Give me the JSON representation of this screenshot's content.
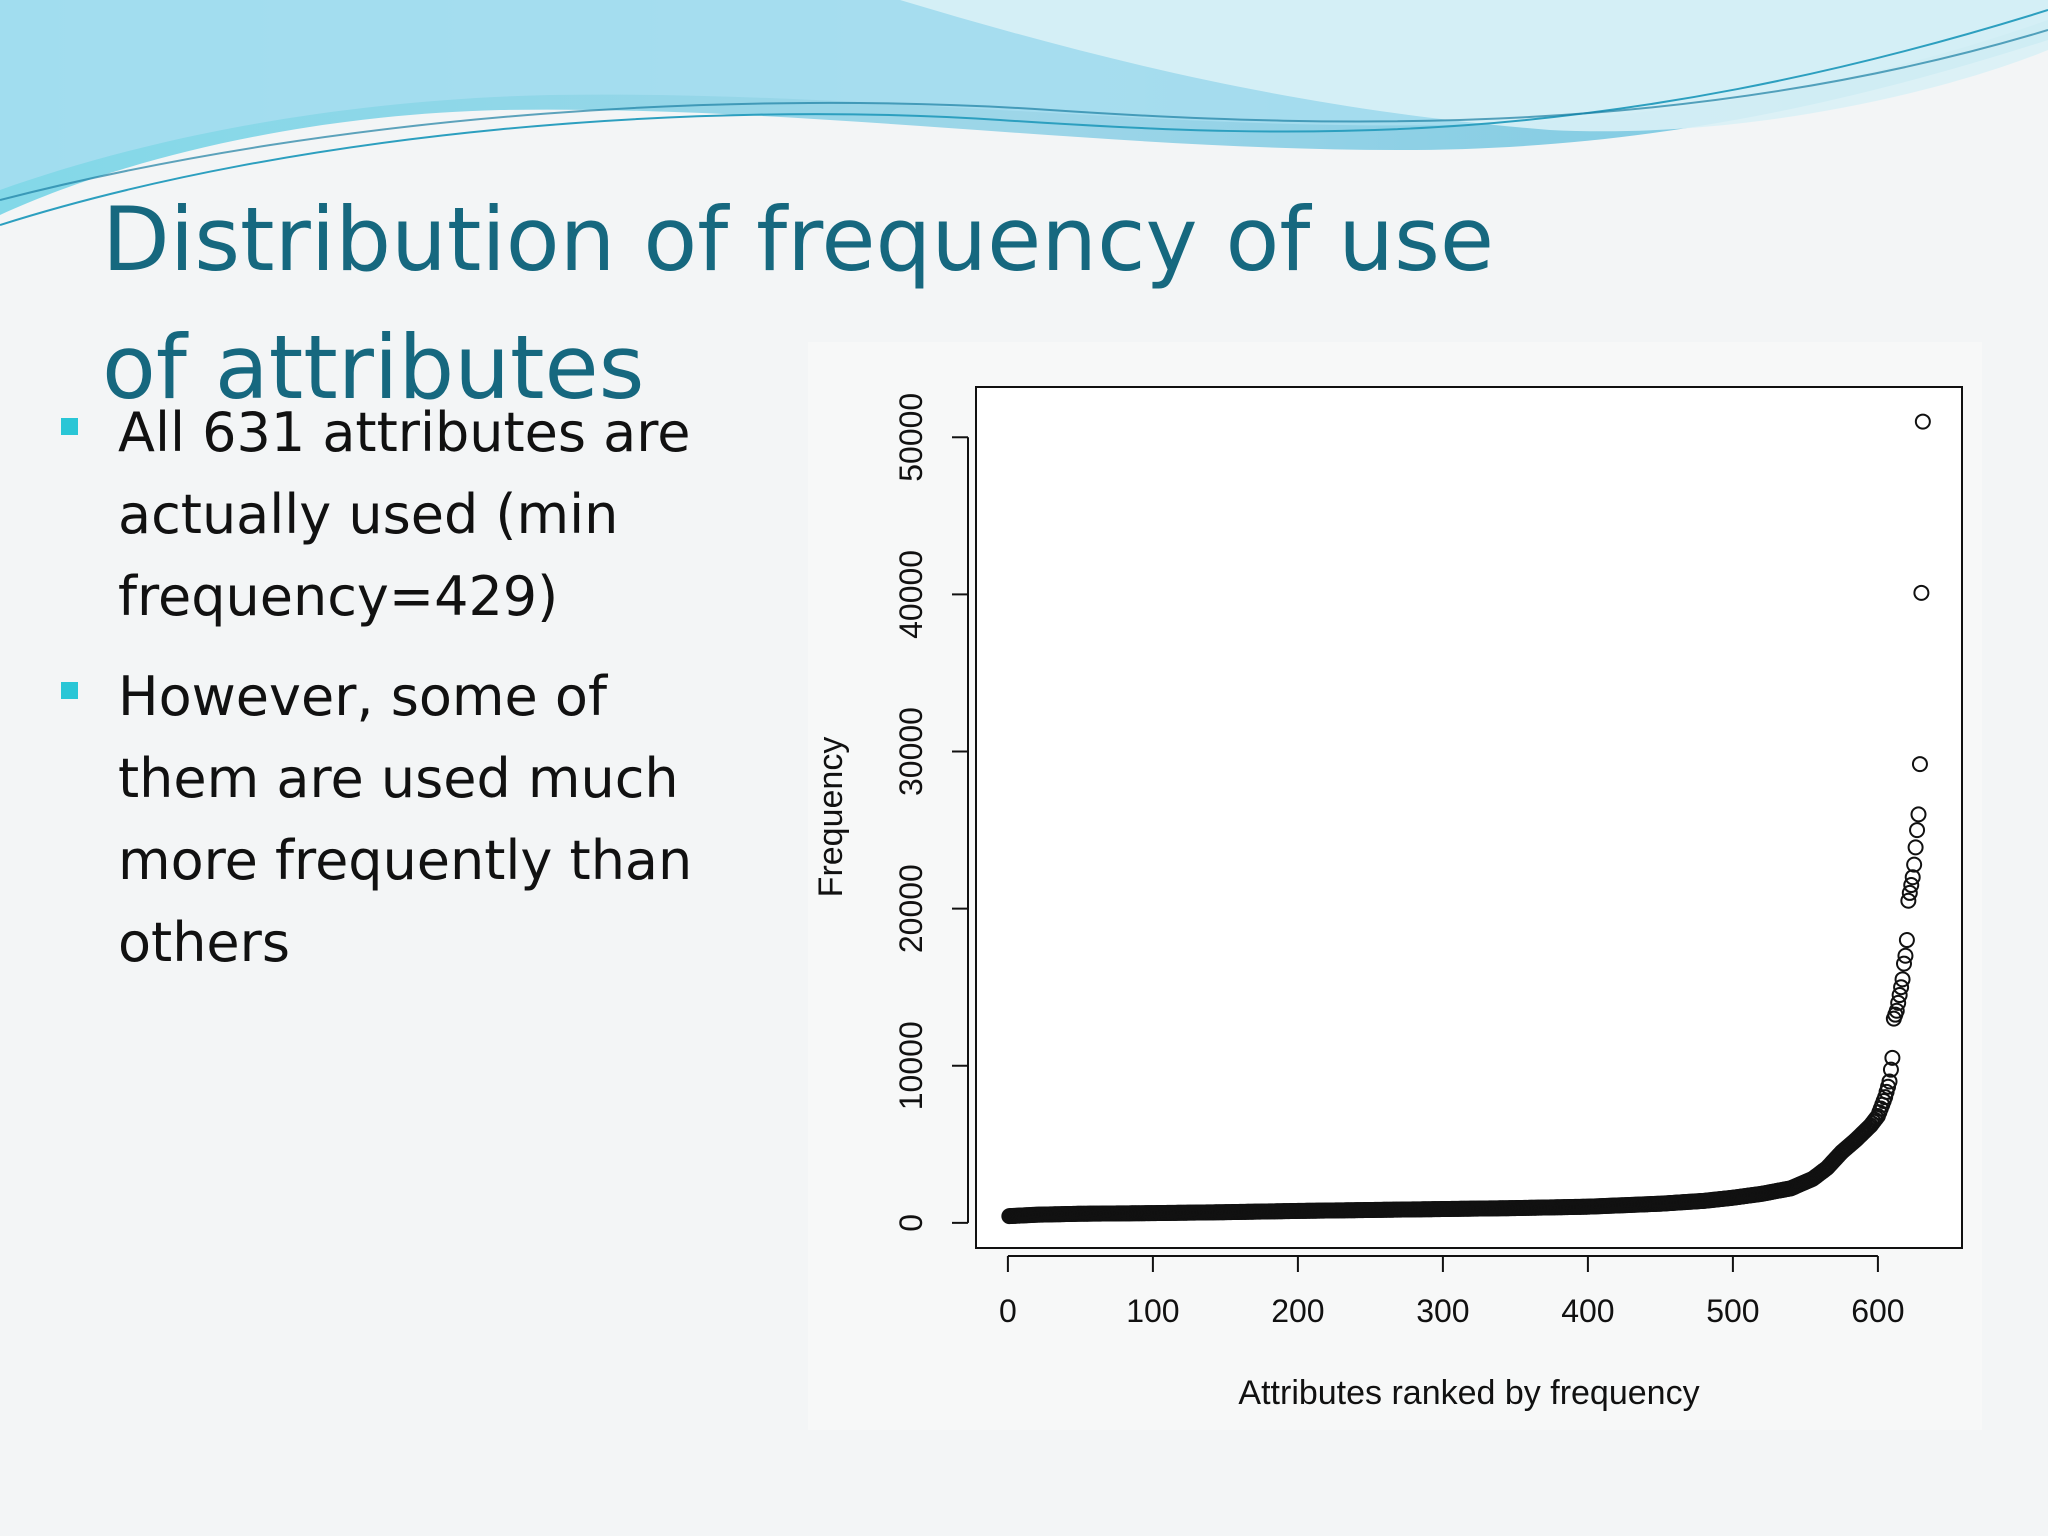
{
  "slide": {
    "title": "Distribution of frequency of use of attributes",
    "bullets": [
      "All 631 attributes are actually used (min frequency=429)",
      "However, some of them are used much more frequently than others"
    ]
  },
  "colors": {
    "title": "#16687f",
    "bullet_marker": "#29c6d6",
    "wave_light": "#bfe6ee",
    "wave_mid": "#7fcfe0",
    "wave_dark": "#3fa9c9"
  },
  "chart_data": {
    "type": "scatter",
    "title": "",
    "xlabel": "Attributes ranked by frequency",
    "ylabel": "Frequency",
    "xlim": [
      -22,
      658
    ],
    "ylim": [
      -1600,
      53200
    ],
    "xticks": [
      0,
      100,
      200,
      300,
      400,
      500,
      600
    ],
    "yticks": [
      0,
      10000,
      20000,
      30000,
      40000,
      50000
    ],
    "marker": "open-circle",
    "grid": false,
    "legend": "none",
    "n_points": 631,
    "min_value": 429,
    "profile": [
      [
        1,
        429
      ],
      [
        20,
        520
      ],
      [
        50,
        580
      ],
      [
        100,
        620
      ],
      [
        150,
        680
      ],
      [
        200,
        760
      ],
      [
        250,
        820
      ],
      [
        300,
        880
      ],
      [
        350,
        940
      ],
      [
        400,
        1030
      ],
      [
        450,
        1220
      ],
      [
        480,
        1400
      ],
      [
        500,
        1600
      ],
      [
        520,
        1850
      ],
      [
        540,
        2200
      ],
      [
        555,
        2800
      ],
      [
        565,
        3500
      ],
      [
        575,
        4500
      ],
      [
        585,
        5300
      ],
      [
        595,
        6200
      ],
      [
        600,
        6800
      ],
      [
        605,
        8000
      ],
      [
        608,
        9000
      ],
      [
        610,
        10500
      ],
      [
        611,
        13000
      ],
      [
        613,
        13500
      ],
      [
        614,
        14000
      ],
      [
        615,
        14500
      ],
      [
        616,
        15000
      ],
      [
        617,
        15500
      ],
      [
        618,
        16500
      ],
      [
        619,
        17000
      ],
      [
        620,
        18000
      ],
      [
        621,
        20500
      ],
      [
        622,
        21000
      ],
      [
        623,
        21500
      ],
      [
        624,
        22000
      ],
      [
        625,
        22800
      ],
      [
        627,
        25000
      ],
      [
        628,
        26000
      ],
      [
        629,
        29200
      ],
      [
        631,
        51000
      ]
    ]
  }
}
